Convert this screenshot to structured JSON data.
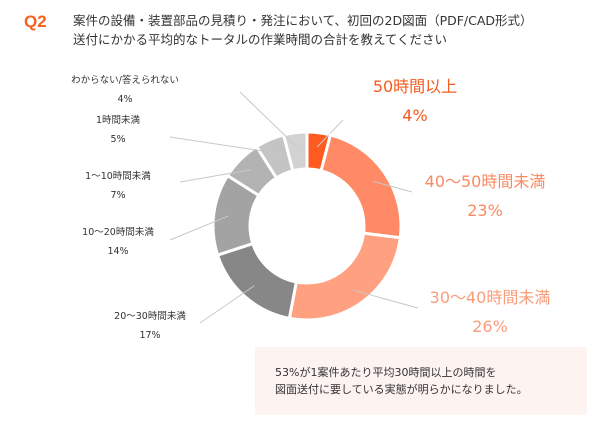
{
  "question_label": "Q2",
  "title_lines": [
    "案件の設備・装置部品の見積り・発注において、初回の2D図面（PDF/CAD形式）",
    "送付にかかる平均的なトータルの作業時間の合計を教えてください"
  ],
  "chart_data": {
    "type": "pie",
    "donut": true,
    "categories": [
      "50時間以上",
      "40～50時間未満",
      "30～40時間未満",
      "20～30時間未満",
      "10～20時間未満",
      "1～10時間未満",
      "1時間未満",
      "わからない/答えられない"
    ],
    "values": [
      4,
      23,
      26,
      17,
      14,
      7,
      5,
      4
    ],
    "value_labels": [
      "4%",
      "23%",
      "26%",
      "17%",
      "14%",
      "7%",
      "5%",
      "4%"
    ],
    "colors": [
      "#ff5a1f",
      "#ff8a65",
      "#ffa080",
      "#878787",
      "#a3a3a3",
      "#b3b3b3",
      "#c4c4c4",
      "#d2d2d2"
    ],
    "label_colors": [
      "#f55a1e",
      "#f98a62",
      "#f99d7a",
      "#333333",
      "#333333",
      "#333333",
      "#333333",
      "#333333"
    ],
    "start": "top, clockwise"
  },
  "summary_lines": [
    "53%が1案件あたり平均30時間以上の時間を",
    "図面送付に要している実態が明らかになりました。"
  ]
}
